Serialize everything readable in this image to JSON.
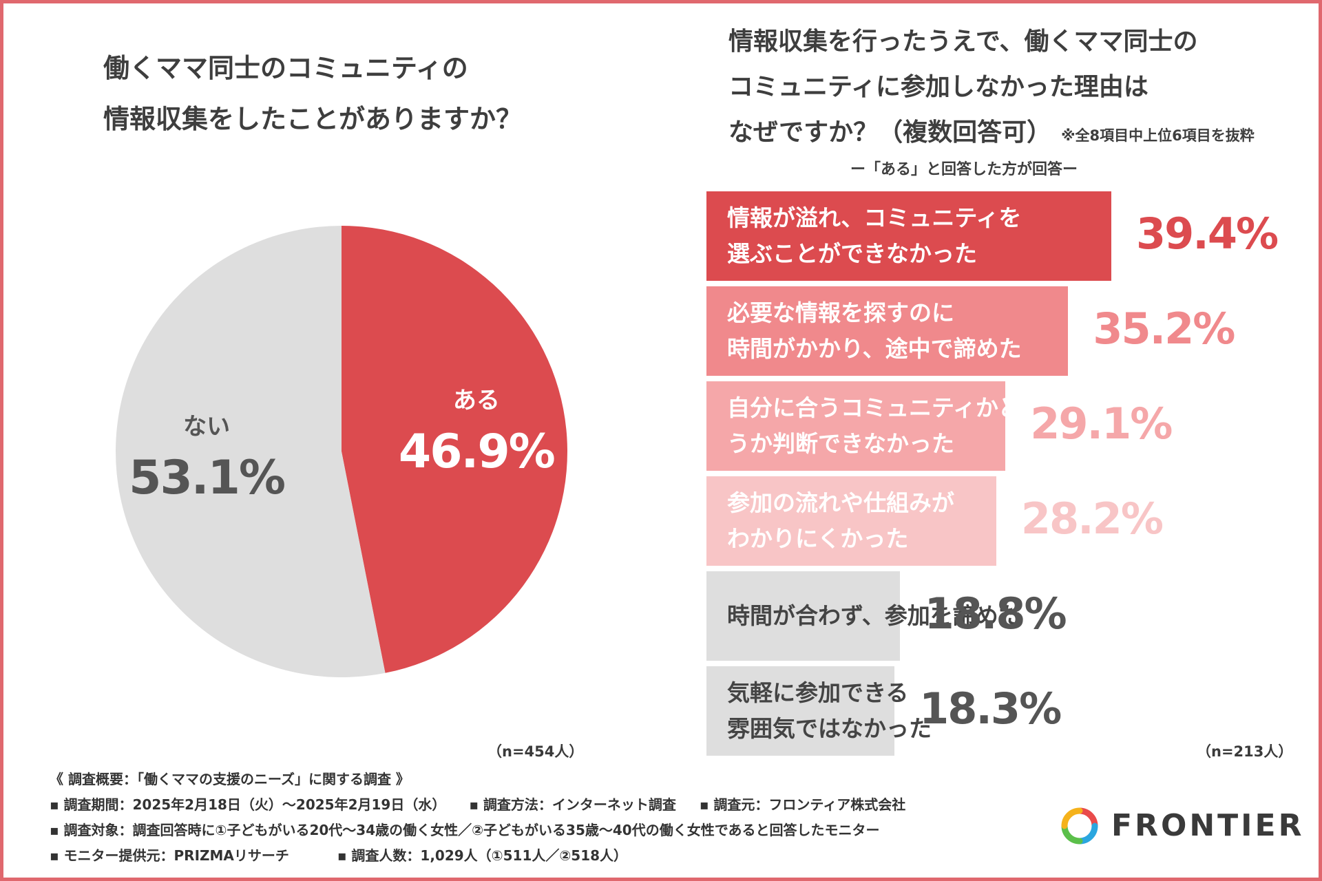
{
  "left_title": {
    "line1": "働くママ同士のコミュニティの",
    "line2": "情報収集をしたことがありますか？"
  },
  "right_title": {
    "line1": "情報収集を行ったうえで、働くママ同士の",
    "line2": "コミュニティに参加しなかった理由は",
    "line3": "なぜですか？（複数回答可）",
    "note": "※全8項目中上位6項目を抜粋",
    "subtitle": "ー「ある」と回答した方が回答ー"
  },
  "n_left": "（n=454人）",
  "n_right": "（n=213人）",
  "colors": {
    "accent": "#dc4b4f",
    "gray_slice": "#dedede",
    "bar1": "#dc4b4f",
    "bar2": "#f0898c",
    "bar3": "#f5a7a9",
    "bar4": "#f8c5c6",
    "bar5": "#dedede",
    "bar6": "#dedede",
    "frame": "#e0686e"
  },
  "chart_data": [
    {
      "type": "pie",
      "title": "働くママ同士のコミュニティの情報収集をしたことがありますか？",
      "slices": [
        {
          "label": "ある",
          "value": 46.9,
          "display": "46.9%",
          "color": "#dc4b4f"
        },
        {
          "label": "ない",
          "value": 53.1,
          "display": "53.1%",
          "color": "#dedede"
        }
      ]
    },
    {
      "type": "bar",
      "orientation": "horizontal",
      "title": "情報収集を行ったうえで、働くママ同士のコミュニティに参加しなかった理由はなぜですか？（複数回答可）",
      "xlim": [
        0,
        40
      ],
      "bars": [
        {
          "label_lines": [
            "情報が溢れ、コミュニティを",
            "選ぶことができなかった"
          ],
          "value": 39.4,
          "display": "39.4%"
        },
        {
          "label_lines": [
            "必要な情報を探すのに",
            "時間がかかり、途中で諦めた"
          ],
          "value": 35.2,
          "display": "35.2%"
        },
        {
          "label_lines": [
            "自分に合うコミュニティかど",
            "うか判断できなかった"
          ],
          "value": 29.1,
          "display": "29.1%"
        },
        {
          "label_lines": [
            "参加の流れや仕組みが",
            "わかりにくかった"
          ],
          "value": 28.2,
          "display": "28.2%"
        },
        {
          "label_lines": [
            "時間が合わず、参加を諦めた"
          ],
          "value": 18.8,
          "display": "18.8%"
        },
        {
          "label_lines": [
            "気軽に参加できる",
            "雰囲気ではなかった"
          ],
          "value": 18.3,
          "display": "18.3%"
        }
      ]
    }
  ],
  "footer": {
    "line1": "《 調査概要：「働くママの支援のニーズ」に関する調査 》",
    "period": "▪ 調査期間：2025年2月18日（火）〜2025年2月19日（水）",
    "method": "▪ 調査方法：インターネット調査",
    "org": "▪ 調査元：フロンティア株式会社",
    "target": "▪ 調査対象：調査回答時に①子どもがいる20代〜34歳の働く女性／②子どもがいる35歳〜40代の働く女性であると回答したモニター",
    "provider": "▪ モニター提供元：PRIZMAリサーチ",
    "count": "▪ 調査人数：1,029人（①511人／②518人）"
  },
  "logo": {
    "text": "FRONTIER"
  }
}
